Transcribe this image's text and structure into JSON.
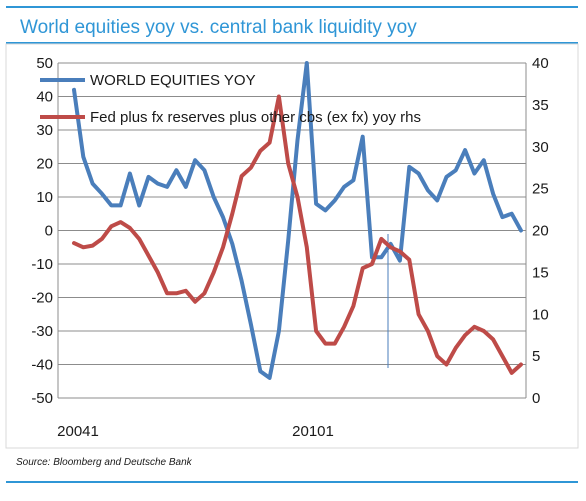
{
  "title": "World equities yoy vs. central bank liquidity yoy",
  "source": "Source: Bloomberg and Deutsche Bank",
  "colors": {
    "accent": "#2f96d6",
    "equities": "#4a7ebb",
    "liquidity": "#be4b48",
    "grid": "#8c8c8c"
  },
  "chart_data": {
    "type": "line",
    "x_tick_labels": [
      "20041",
      "20101"
    ],
    "y_left": {
      "range": [
        -50,
        50
      ],
      "ticks": [
        -50,
        -40,
        -30,
        -20,
        -10,
        0,
        10,
        20,
        30,
        40,
        50
      ]
    },
    "y_right": {
      "range": [
        0,
        40
      ],
      "ticks": [
        0,
        5,
        10,
        15,
        20,
        25,
        30,
        35,
        40
      ]
    },
    "grid": "horizontal",
    "legend_position": "top-left",
    "series": [
      {
        "name": "WORLD EQUITIES YOY",
        "axis": "left",
        "values": [
          42,
          22,
          14,
          11,
          7.5,
          7.5,
          17,
          7.5,
          16,
          14,
          13,
          18,
          13,
          21,
          18,
          10,
          4,
          -4,
          -15,
          -28,
          -42,
          -44,
          -30,
          -3,
          27,
          50,
          8,
          6,
          9,
          13,
          15,
          28,
          -8,
          -8,
          -4,
          -9,
          19,
          17,
          12,
          9,
          16,
          18,
          24,
          17,
          21,
          11,
          4,
          5,
          0
        ]
      },
      {
        "name": "Fed plus fx reserves plus other cbs (ex fx) yoy rhs",
        "axis": "right",
        "values": [
          18.5,
          18,
          18.2,
          19,
          20.5,
          21,
          20.3,
          19,
          17,
          15,
          12.5,
          12.5,
          12.8,
          11.5,
          12.5,
          15,
          18,
          22,
          26.5,
          27.5,
          29.5,
          30.5,
          36,
          28,
          24,
          18,
          8,
          6.5,
          6.5,
          8.5,
          11,
          15.5,
          16,
          19,
          18,
          17.5,
          16.5,
          10,
          8,
          5,
          4,
          6,
          7.5,
          8.5,
          8,
          7,
          5,
          3,
          4
        ]
      }
    ]
  }
}
